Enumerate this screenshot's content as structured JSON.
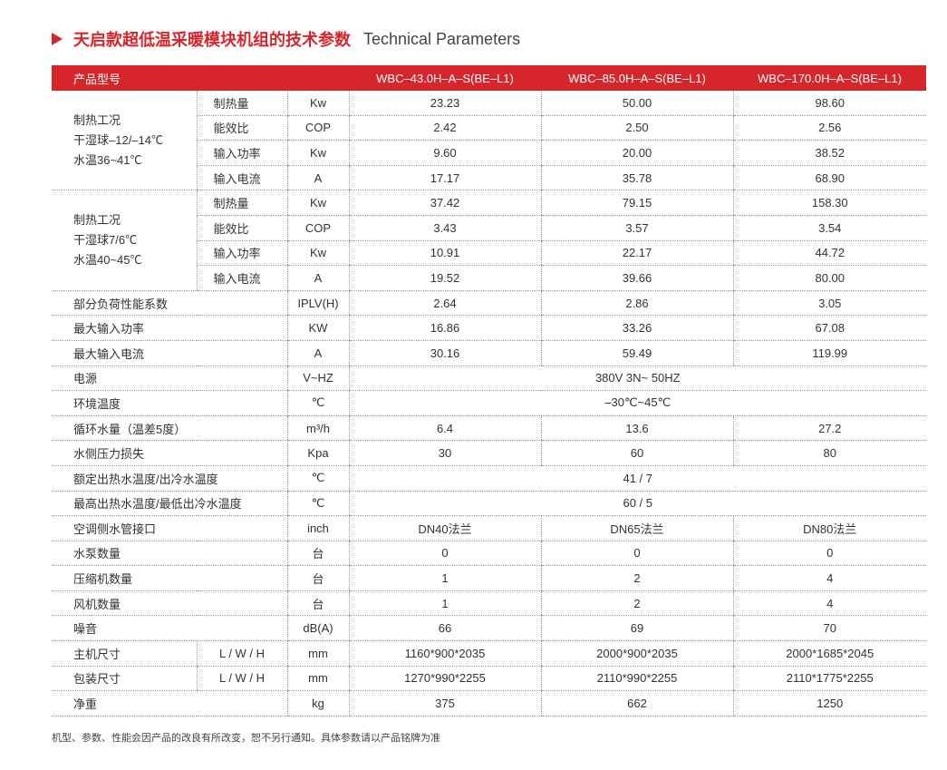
{
  "title": {
    "cn": "天启款超低温采暖模块机组的技术参数",
    "en": "Technical Parameters"
  },
  "header": {
    "label": "产品型号",
    "models": [
      "WBC–43.0H–A–S(BE–L1)",
      "WBC–85.0H–A–S(BE–L1)",
      "WBC–170.0H–A–S(BE–L1)"
    ]
  },
  "groups": [
    {
      "lines": [
        "制热工况",
        "干湿球–12/–14℃",
        "水温36~41℃"
      ],
      "items": [
        {
          "sub": "制热量",
          "unit": "Kw",
          "values": [
            "23.23",
            "50.00",
            "98.60"
          ]
        },
        {
          "sub": "能效比",
          "unit": "COP",
          "values": [
            "2.42",
            "2.50",
            "2.56"
          ]
        },
        {
          "sub": "输入功率",
          "unit": "Kw",
          "values": [
            "9.60",
            "20.00",
            "38.52"
          ]
        },
        {
          "sub": "输入电流",
          "unit": "A",
          "values": [
            "17.17",
            "35.78",
            "68.90"
          ]
        }
      ]
    },
    {
      "lines": [
        "制热工况",
        "干湿球7/6℃",
        "水温40~45℃"
      ],
      "items": [
        {
          "sub": "制热量",
          "unit": "Kw",
          "values": [
            "37.42",
            "79.15",
            "158.30"
          ]
        },
        {
          "sub": "能效比",
          "unit": "COP",
          "values": [
            "3.43",
            "3.57",
            "3.54"
          ]
        },
        {
          "sub": "输入功率",
          "unit": "Kw",
          "values": [
            "10.91",
            "22.17",
            "44.72"
          ]
        },
        {
          "sub": "输入电流",
          "unit": "A",
          "values": [
            "19.52",
            "39.66",
            "80.00"
          ]
        }
      ]
    }
  ],
  "rows": [
    {
      "label": "部分负荷性能系数",
      "unit": "IPLV(H)",
      "values": [
        "2.64",
        "2.86",
        "3.05"
      ]
    },
    {
      "label": "最大输入功率",
      "unit": "KW",
      "values": [
        "16.86",
        "33.26",
        "67.08"
      ]
    },
    {
      "label": "最大输入电流",
      "unit": "A",
      "values": [
        "30.16",
        "59.49",
        "119.99"
      ]
    },
    {
      "label": "电源",
      "unit": "V~HZ",
      "merged": "380V 3N~ 50HZ"
    },
    {
      "label": "环境温度",
      "unit": "℃",
      "merged": "–30℃~45℃"
    },
    {
      "label": "循环水量（温差5度）",
      "unit": "m³/h",
      "values": [
        "6.4",
        "13.6",
        "27.2"
      ]
    },
    {
      "label": "水侧压力损失",
      "unit": "Kpa",
      "values": [
        "30",
        "60",
        "80"
      ]
    },
    {
      "label": "额定出热水温度/出冷水温度",
      "unit": "℃",
      "merged": "41 / 7"
    },
    {
      "label": "最高出热水温度/最低出冷水温度",
      "unit": "℃",
      "merged": "60 / 5"
    },
    {
      "label": "空调侧水管接口",
      "unit": "inch",
      "values": [
        "DN40法兰",
        "DN65法兰",
        "DN80法兰"
      ]
    },
    {
      "label": "水泵数量",
      "unit": "台",
      "values": [
        "0",
        "0",
        "0"
      ]
    },
    {
      "label": "压缩机数量",
      "unit": "台",
      "values": [
        "1",
        "2",
        "4"
      ]
    },
    {
      "label": "风机数量",
      "unit": "台",
      "values": [
        "1",
        "2",
        "4"
      ]
    },
    {
      "label": "噪音",
      "unit": "dB(A)",
      "values": [
        "66",
        "69",
        "70"
      ]
    },
    {
      "label": "主机尺寸",
      "sub": "L / W / H",
      "unit": "mm",
      "values": [
        "1160*900*2035",
        "2000*900*2035",
        "2000*1685*2045"
      ]
    },
    {
      "label": "包装尺寸",
      "sub": "L / W / H",
      "unit": "mm",
      "values": [
        "1270*990*2255",
        "2110*990*2255",
        "2110*1775*2255"
      ]
    },
    {
      "label": "净重",
      "unit": "kg",
      "values": [
        "375",
        "662",
        "1250"
      ]
    }
  ],
  "note": "机型、参数、性能会因产品的改良有所改变，恕不另行通知。具体参数请以产品铭牌为准",
  "colors": {
    "accent": "#d7262b"
  }
}
